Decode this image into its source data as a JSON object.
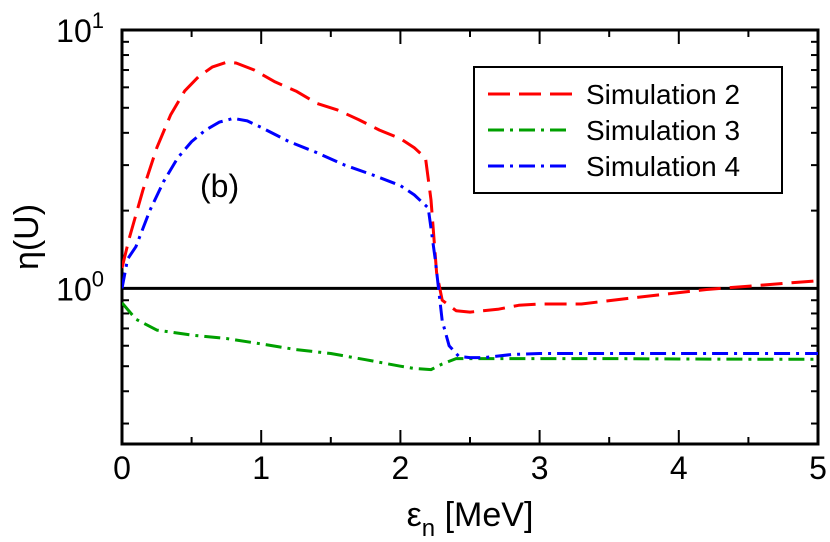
{
  "chart_data": {
    "type": "line",
    "annotation": "(b)",
    "xlabel": {
      "main": "ε",
      "sub": "n",
      "rest": " [MeV]"
    },
    "ylabel": "η(U)",
    "xlim": [
      0,
      5
    ],
    "ylim": [
      0.25,
      10
    ],
    "yscale": "log",
    "x_ticks": [
      0,
      1,
      2,
      3,
      4,
      5
    ],
    "x_tick_labels": [
      "0",
      "1",
      "2",
      "3",
      "4",
      "5"
    ],
    "y_ticks": [
      {
        "value": 1,
        "base": "10",
        "exp": "0"
      },
      {
        "value": 10,
        "base": "10",
        "exp": "1"
      }
    ],
    "reference_line": {
      "y": 1,
      "color": "#000000"
    },
    "legend_position": "top-right",
    "series": [
      {
        "name": "Simulation 2",
        "color": "#ff0000",
        "dash": "dashed",
        "points": [
          [
            0,
            1.2
          ],
          [
            0.05,
            1.55
          ],
          [
            0.15,
            2.4
          ],
          [
            0.25,
            3.5
          ],
          [
            0.35,
            4.7
          ],
          [
            0.45,
            5.8
          ],
          [
            0.55,
            6.6
          ],
          [
            0.65,
            7.2
          ],
          [
            0.75,
            7.5
          ],
          [
            0.82,
            7.45
          ],
          [
            0.95,
            7.0
          ],
          [
            1.1,
            6.3
          ],
          [
            1.25,
            5.8
          ],
          [
            1.4,
            5.2
          ],
          [
            1.55,
            4.9
          ],
          [
            1.7,
            4.5
          ],
          [
            1.85,
            4.1
          ],
          [
            2.0,
            3.8
          ],
          [
            2.1,
            3.5
          ],
          [
            2.18,
            3.2
          ],
          [
            2.22,
            2.2
          ],
          [
            2.26,
            1.15
          ],
          [
            2.3,
            0.9
          ],
          [
            2.4,
            0.82
          ],
          [
            2.5,
            0.81
          ],
          [
            2.7,
            0.83
          ],
          [
            2.85,
            0.86
          ],
          [
            3.0,
            0.87
          ],
          [
            3.3,
            0.87
          ],
          [
            3.6,
            0.91
          ],
          [
            3.9,
            0.95
          ],
          [
            4.2,
            0.99
          ],
          [
            4.5,
            1.02
          ],
          [
            4.8,
            1.05
          ],
          [
            5.0,
            1.07
          ]
        ]
      },
      {
        "name": "Simulation 3",
        "color": "#00a000",
        "dash": "dash-dot",
        "points": [
          [
            0,
            0.88
          ],
          [
            0.1,
            0.76
          ],
          [
            0.25,
            0.69
          ],
          [
            0.5,
            0.66
          ],
          [
            0.75,
            0.64
          ],
          [
            1.0,
            0.61
          ],
          [
            1.25,
            0.58
          ],
          [
            1.5,
            0.56
          ],
          [
            1.75,
            0.53
          ],
          [
            2.0,
            0.5
          ],
          [
            2.1,
            0.49
          ],
          [
            2.22,
            0.485
          ],
          [
            2.3,
            0.51
          ],
          [
            2.4,
            0.535
          ],
          [
            2.6,
            0.535
          ],
          [
            3.0,
            0.535
          ],
          [
            3.5,
            0.535
          ],
          [
            4.0,
            0.533
          ],
          [
            4.5,
            0.532
          ],
          [
            5.0,
            0.532
          ]
        ]
      },
      {
        "name": "Simulation 4",
        "color": "#0000ff",
        "dash": "dash-dot",
        "points": [
          [
            0,
            1.0
          ],
          [
            0.04,
            1.3
          ],
          [
            0.1,
            1.45
          ],
          [
            0.2,
            2.0
          ],
          [
            0.3,
            2.6
          ],
          [
            0.4,
            3.2
          ],
          [
            0.5,
            3.7
          ],
          [
            0.6,
            4.1
          ],
          [
            0.7,
            4.4
          ],
          [
            0.8,
            4.55
          ],
          [
            0.9,
            4.45
          ],
          [
            1.0,
            4.2
          ],
          [
            1.2,
            3.7
          ],
          [
            1.4,
            3.35
          ],
          [
            1.6,
            3.0
          ],
          [
            1.8,
            2.75
          ],
          [
            2.0,
            2.5
          ],
          [
            2.1,
            2.3
          ],
          [
            2.2,
            2.05
          ],
          [
            2.25,
            1.3
          ],
          [
            2.3,
            0.75
          ],
          [
            2.35,
            0.6
          ],
          [
            2.42,
            0.545
          ],
          [
            2.5,
            0.54
          ],
          [
            2.6,
            0.54
          ],
          [
            2.8,
            0.555
          ],
          [
            3.0,
            0.56
          ],
          [
            3.5,
            0.56
          ],
          [
            4.0,
            0.56
          ],
          [
            4.5,
            0.56
          ],
          [
            5.0,
            0.56
          ]
        ]
      }
    ]
  }
}
